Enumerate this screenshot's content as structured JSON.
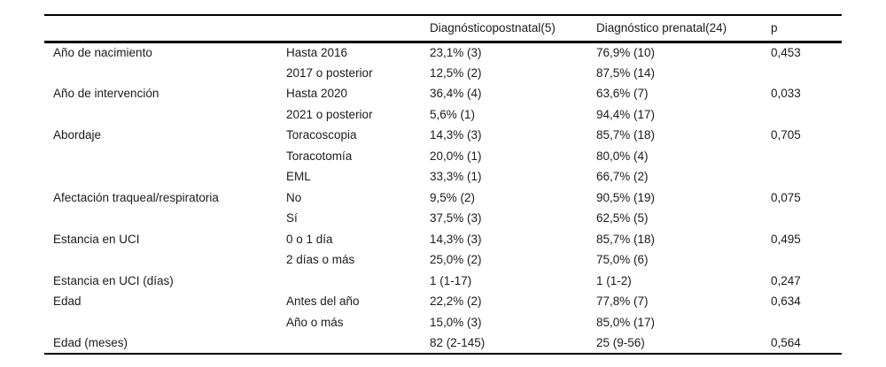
{
  "table": {
    "headers": [
      "",
      "",
      "Diagnósticopostnatal(5)",
      "Diagnóstico prenatal(24)",
      "p"
    ],
    "rows": [
      [
        "Año de nacimiento",
        "Hasta 2016",
        "23,1% (3)",
        "76,9% (10)",
        "0,453"
      ],
      [
        "",
        "2017 o posterior",
        "12,5% (2)",
        "87,5% (14)",
        ""
      ],
      [
        "Año de intervención",
        "Hasta 2020",
        "36,4% (4)",
        "63,6% (7)",
        "0,033"
      ],
      [
        "",
        "2021 o posterior",
        "5,6% (1)",
        "94,4% (17)",
        ""
      ],
      [
        "Abordaje",
        "Toracoscopia",
        "14,3% (3)",
        "85,7% (18)",
        "0,705"
      ],
      [
        "",
        "Toracotomía",
        "20,0% (1)",
        "80,0% (4)",
        ""
      ],
      [
        "",
        "EML",
        "33,3% (1)",
        "66,7% (2)",
        ""
      ],
      [
        "Afectación traqueal/respiratoria",
        "No",
        "9,5% (2)",
        "90,5% (19)",
        "0,075"
      ],
      [
        "",
        "Sí",
        "37,5% (3)",
        "62,5% (5)",
        ""
      ],
      [
        "Estancia en UCI",
        "0 o 1 día",
        "14,3% (3)",
        "85,7% (18)",
        "0,495"
      ],
      [
        "",
        "2 días o más",
        "25,0% (2)",
        "75,0% (6)",
        ""
      ],
      [
        "Estancia en UCI (días)",
        "",
        "1 (1-17)",
        "1 (1-2)",
        "0,247"
      ],
      [
        "Edad",
        "Antes del año",
        "22,2% (2)",
        "77,8% (7)",
        "0,634"
      ],
      [
        "",
        "Año o más",
        "15,0% (3)",
        "85,0% (17)",
        ""
      ],
      [
        "Edad (meses)",
        "",
        "82 (2-145)",
        "25 (9-56)",
        "0,564"
      ]
    ]
  }
}
